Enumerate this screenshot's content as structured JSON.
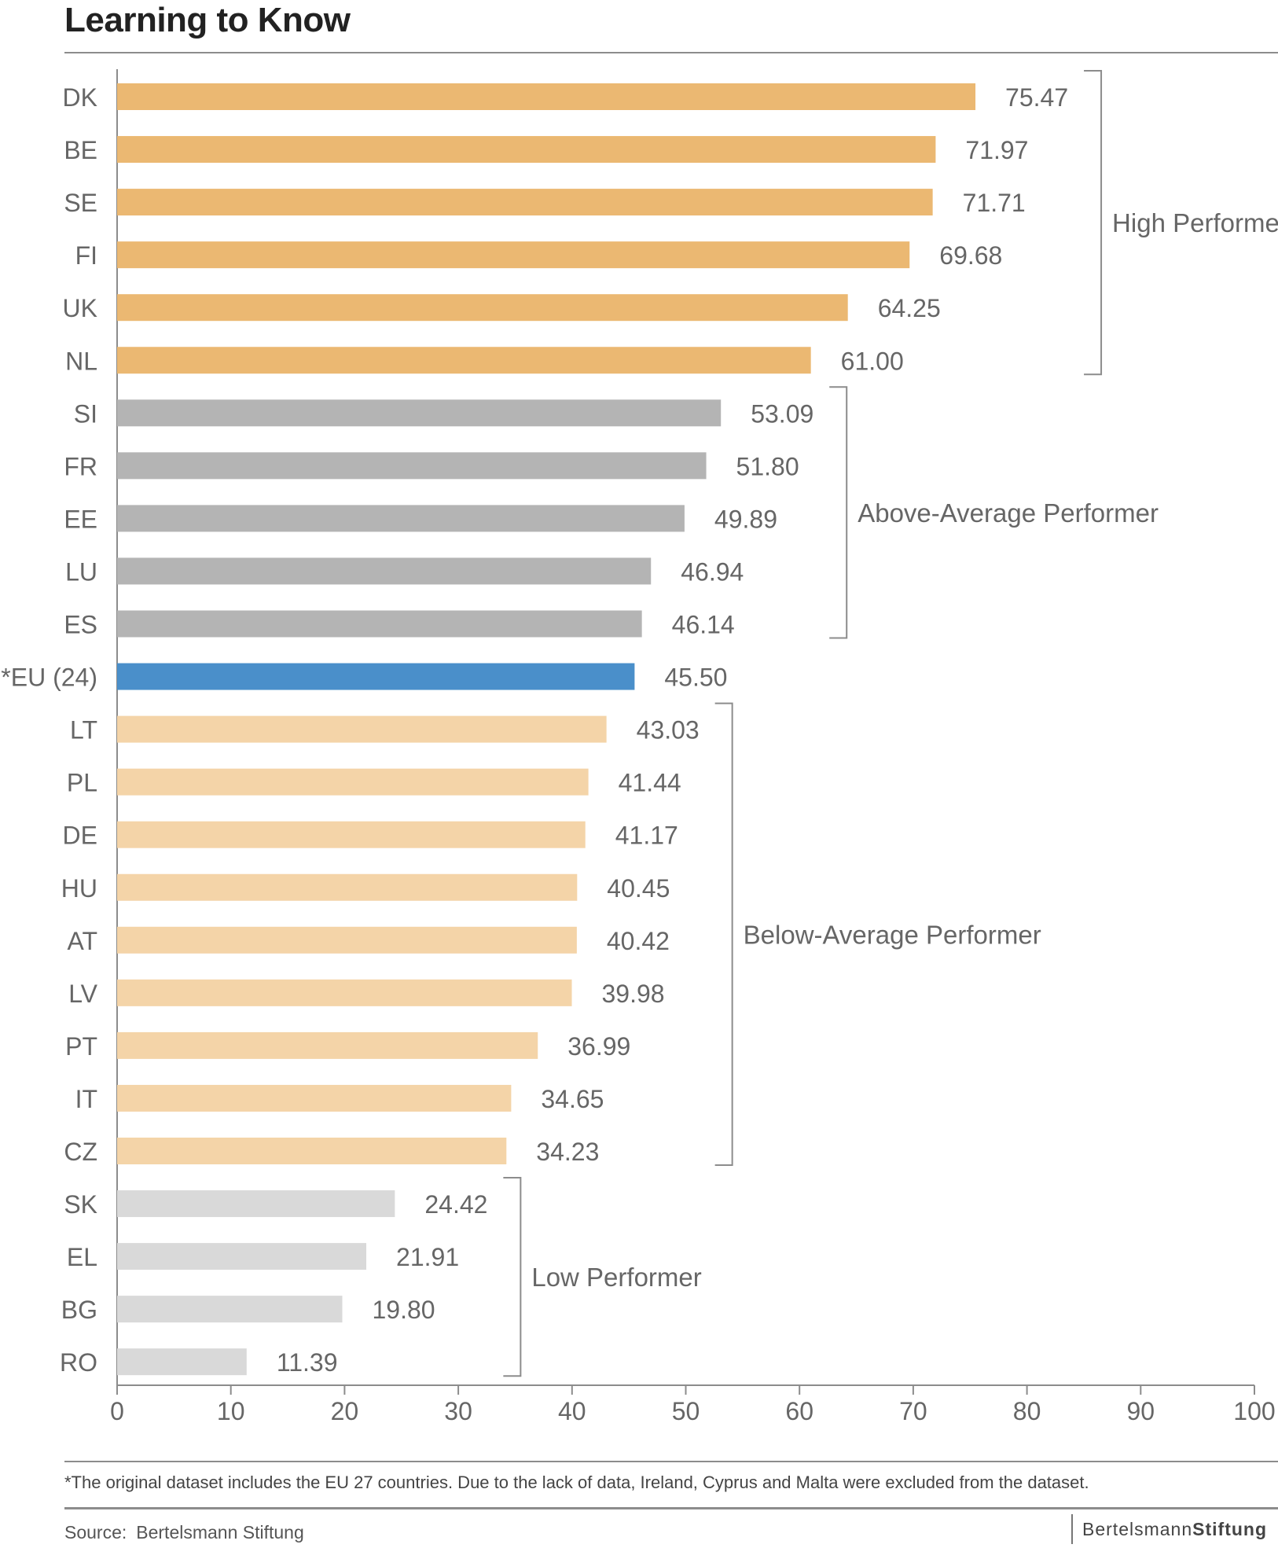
{
  "title": "Learning to Know",
  "footnote": "*The original dataset includes the EU 27 countries. Due to the lack of data, Ireland, Cyprus and Malta were excluded from the dataset.",
  "source": {
    "label": "Source:",
    "value": "Bertelsmann Stiftung"
  },
  "brand": {
    "part1": "Bertelsmann",
    "part2": "Stiftung"
  },
  "colors": {
    "high": "#ebb872",
    "above": "#b4b4b4",
    "eu": "#4a8fca",
    "below": "#f4d4a8",
    "low": "#d9d9d9",
    "text": "#666666",
    "axis": "#8c8c8c"
  },
  "chart_data": {
    "type": "bar",
    "orientation": "horizontal",
    "categories": [
      "DK",
      "BE",
      "SE",
      "FI",
      "UK",
      "NL",
      "SI",
      "FR",
      "EE",
      "LU",
      "ES",
      "*EU (24)",
      "LT",
      "PL",
      "DE",
      "HU",
      "AT",
      "LV",
      "PT",
      "IT",
      "CZ",
      "SK",
      "EL",
      "BG",
      "RO"
    ],
    "values": [
      75.47,
      71.97,
      71.71,
      69.68,
      64.25,
      61.0,
      53.09,
      51.8,
      49.89,
      46.94,
      46.14,
      45.5,
      43.03,
      41.44,
      41.17,
      40.45,
      40.42,
      39.98,
      36.99,
      34.65,
      34.23,
      24.42,
      21.91,
      19.8,
      11.39
    ],
    "value_labels": [
      "75.47",
      "71.97",
      "71.71",
      "69.68",
      "64.25",
      "61.00",
      "53.09",
      "51.80",
      "49.89",
      "46.94",
      "46.14",
      "45.50",
      "43.03",
      "41.44",
      "41.17",
      "40.45",
      "40.42",
      "39.98",
      "36.99",
      "34.65",
      "34.23",
      "24.42",
      "21.91",
      "19.80",
      "11.39"
    ],
    "groups_per_bar": [
      "high",
      "high",
      "high",
      "high",
      "high",
      "high",
      "above",
      "above",
      "above",
      "above",
      "above",
      "eu",
      "below",
      "below",
      "below",
      "below",
      "below",
      "below",
      "below",
      "below",
      "below",
      "low",
      "low",
      "low",
      "low"
    ],
    "brackets": [
      {
        "label": "High Performer",
        "from": 0,
        "to": 5
      },
      {
        "label": "Above-Average Performer",
        "from": 6,
        "to": 10
      },
      {
        "label": "Below-Average Performer",
        "from": 12,
        "to": 20
      },
      {
        "label": "Low Performer",
        "from": 21,
        "to": 24
      }
    ],
    "xlim": [
      0,
      100
    ],
    "xticks": [
      0,
      10,
      20,
      30,
      40,
      50,
      60,
      70,
      80,
      90,
      100
    ],
    "grid": false
  }
}
